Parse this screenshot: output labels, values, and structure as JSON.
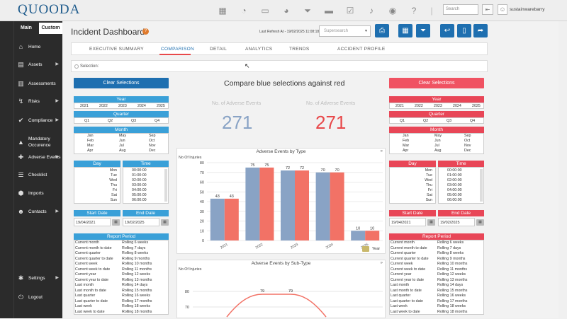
{
  "app": {
    "logo": "QUOODA",
    "search_placeholder": "Search",
    "username": "sustainwarebarry"
  },
  "topbar_icons": [
    "calendar-icon",
    "gauge-icon",
    "inbox-icon",
    "pie-chart-icon",
    "filter-icon",
    "folder-icon",
    "checklist-icon",
    "bell-icon",
    "eye-icon",
    "help-icon"
  ],
  "sidebar": {
    "tabs": {
      "main": "Main",
      "custom": "Custom"
    },
    "items": [
      {
        "label": "Home",
        "icon": "home-icon",
        "arrow": false
      },
      {
        "label": "Assets",
        "icon": "assets-icon",
        "arrow": true
      },
      {
        "label": "Assessments",
        "icon": "assessment-icon",
        "arrow": false
      },
      {
        "label": "Risks",
        "icon": "risk-icon",
        "arrow": true
      },
      {
        "label": "Compliance",
        "icon": "compliance-icon",
        "arrow": true
      },
      {
        "label": "Mandatory Occurence",
        "icon": "mandatory-icon",
        "arrow": false
      },
      {
        "label": "Adverse Events",
        "icon": "adverse-icon",
        "arrow": true
      },
      {
        "label": "Checklist",
        "icon": "checklist-icon",
        "arrow": false
      },
      {
        "label": "Imports",
        "icon": "imports-icon",
        "arrow": false
      },
      {
        "label": "Contacts",
        "icon": "contacts-icon",
        "arrow": true
      }
    ],
    "bottom": [
      {
        "label": "Settings",
        "icon": "gear-icon",
        "arrow": true
      },
      {
        "label": "Logout",
        "icon": "logout-icon",
        "arrow": false
      }
    ]
  },
  "header": {
    "title": "Incident Dashboard",
    "badge": "?",
    "refresh": "Last Refresh At - 19/02/2025 11:08:18",
    "supersearch": "Supersearch"
  },
  "tabs": [
    "EXECUTIVE SUMMARY",
    "COMPARISON",
    "DETAIL",
    "ANALYTICS",
    "TRENDS",
    "ACCIDENT PROFILE"
  ],
  "selection_label": "Selection:",
  "compare_title": "Compare blue selections against red",
  "filters": {
    "clear_label": "Clear Selections",
    "year_label": "Year",
    "years": [
      "2021",
      "2022",
      "2023",
      "2024",
      "2025"
    ],
    "quarter_label": "Quarter",
    "quarters": [
      "Q1",
      "Q2",
      "Q3",
      "Q4"
    ],
    "month_label": "Month",
    "months": [
      "Jan",
      "Feb",
      "Mar",
      "Apr",
      "May",
      "Jun",
      "Jul",
      "Aug",
      "Sep",
      "Oct",
      "Nov",
      "Dec"
    ],
    "day_label": "Day",
    "days": [
      "Mon",
      "Tue",
      "Wed",
      "Thu",
      "Fri",
      "Sat",
      "Sun"
    ],
    "time_label": "Time",
    "times": [
      "00:00:00",
      "01:00:00",
      "02:00:00",
      "03:00:00",
      "04:00:00",
      "05:00:00",
      "06:00:00"
    ],
    "start_label": "Start Date",
    "end_label": "End Date",
    "start": "19/04/2021",
    "end": "19/02/2025",
    "period_label": "Report Period",
    "periods_left": [
      "Current month",
      "Current month to date",
      "Current quarter",
      "Current quarter to date",
      "Current week",
      "Current week to date",
      "Current year",
      "Current year to date",
      "Last month",
      "Last month to date",
      "Last quarter",
      "Last quarter to date",
      "Last week",
      "Last week to date"
    ],
    "periods_right": [
      "Rolling 6 weeks",
      "Rolling 7 days",
      "Rolling 8 weeks",
      "Rolling 9 months",
      "Rolling 10 months",
      "Rolling 11 months",
      "Rolling 12 weeks",
      "Rolling 13 months",
      "Rolling 14 days",
      "Rolling 15 months",
      "Rolling 16 weeks",
      "Rolling 17 months",
      "Rolling 18 weeks",
      "Rolling 18 months"
    ]
  },
  "kpi": {
    "label": "No. of Adverse Events",
    "blue": "271",
    "red": "271"
  },
  "colors": {
    "blue": "#89a3c5",
    "red": "#f27266",
    "hdr_blue": "#3aa0d8",
    "hdr_red": "#e84657"
  },
  "chart_data": [
    {
      "type": "bar",
      "title": "Adverse Events by Type",
      "ylabel": "No Of Injuries",
      "xlabel": "Year",
      "categories": [
        "2021",
        "2022",
        "2023",
        "2024",
        "2025"
      ],
      "series": [
        {
          "values": [
            43,
            75,
            72,
            70,
            10
          ]
        },
        {
          "values": [
            43,
            75,
            72,
            70,
            10
          ]
        }
      ],
      "ylim": [
        0,
        80
      ],
      "yticks": [
        0,
        10,
        20,
        30,
        40,
        50,
        60,
        70,
        80
      ],
      "grid": true
    },
    {
      "type": "line",
      "title": "Adverse Events by Sub-Type",
      "ylabel": "No Of Injuries",
      "yticks": [
        70,
        80
      ],
      "labels": [
        "79",
        "79"
      ]
    }
  ]
}
